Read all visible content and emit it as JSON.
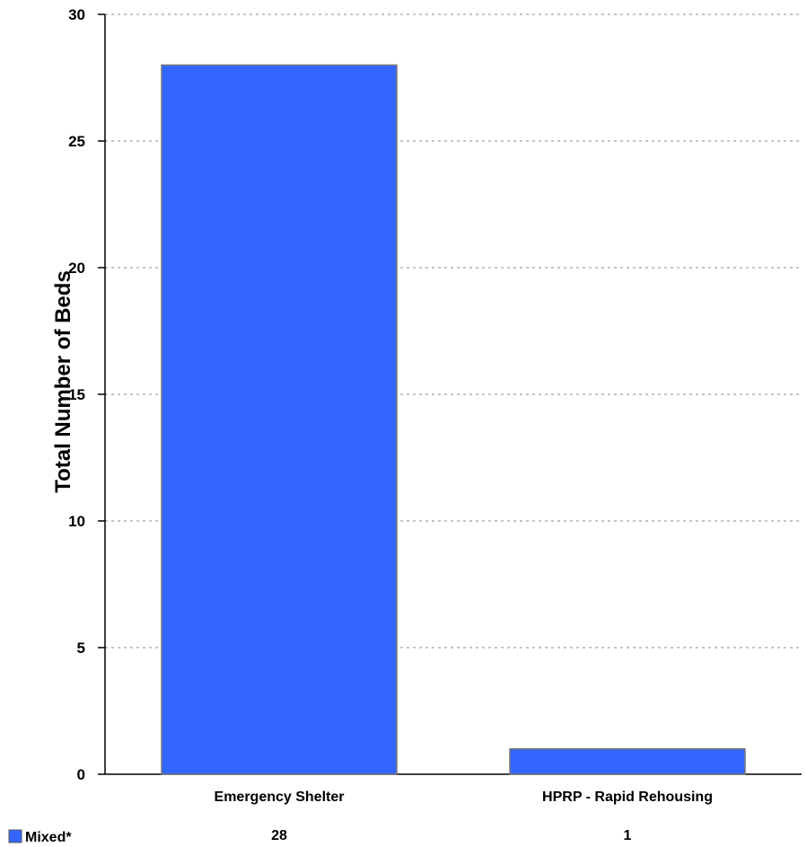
{
  "chart_data": {
    "type": "bar",
    "ylabel": "Total Number of Beds",
    "xlabel": "",
    "categories": [
      "Emergency Shelter",
      "HPRP - Rapid Rehousing"
    ],
    "series": [
      {
        "name": "Mixed*",
        "values": [
          28,
          1
        ],
        "color": "#3366ff"
      }
    ],
    "ylim": [
      0,
      30
    ],
    "yticks": [
      0,
      5,
      10,
      15,
      20,
      25,
      30
    ],
    "grid": true,
    "legend_placement": "bottom-left",
    "data_table": true
  }
}
